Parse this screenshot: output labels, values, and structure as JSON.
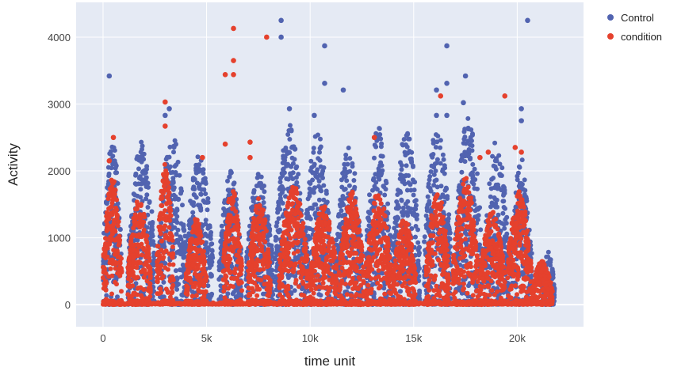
{
  "chart_data": {
    "type": "scatter",
    "title": "",
    "xlabel": "time unit",
    "ylabel": "Activity",
    "xlim": [
      -1300,
      23200
    ],
    "ylim": [
      -330,
      4520
    ],
    "xticks": [
      0,
      5000,
      10000,
      15000,
      20000
    ],
    "xtick_labels": [
      "0",
      "5k",
      "10k",
      "15k",
      "20k"
    ],
    "yticks": [
      0,
      1000,
      2000,
      3000,
      4000
    ],
    "ytick_labels": [
      "0",
      "1000",
      "2000",
      "3000",
      "4000"
    ],
    "grid": true,
    "legend_position": "top-right",
    "background": "#e5eaf4",
    "series": [
      {
        "name": "Control",
        "color": "#5163b0",
        "bursts": [
          {
            "x_start": 0,
            "x_end": 900,
            "max": 2450
          },
          {
            "x_start": 1200,
            "x_end": 2500,
            "max": 2450
          },
          {
            "x_start": 2700,
            "x_end": 4000,
            "max": 2600
          },
          {
            "x_start": 4000,
            "x_end": 5300,
            "max": 2300
          },
          {
            "x_start": 5600,
            "x_end": 6700,
            "max": 2000
          },
          {
            "x_start": 6900,
            "x_end": 8200,
            "max": 2000
          },
          {
            "x_start": 8300,
            "x_end": 9700,
            "max": 2700
          },
          {
            "x_start": 9700,
            "x_end": 11000,
            "max": 2600
          },
          {
            "x_start": 11200,
            "x_end": 12500,
            "max": 2350
          },
          {
            "x_start": 12700,
            "x_end": 13900,
            "max": 2650
          },
          {
            "x_start": 14000,
            "x_end": 15300,
            "max": 2600
          },
          {
            "x_start": 15500,
            "x_end": 16800,
            "max": 2700
          },
          {
            "x_start": 17000,
            "x_end": 18300,
            "max": 2850
          },
          {
            "x_start": 18400,
            "x_end": 19600,
            "max": 2500
          },
          {
            "x_start": 19700,
            "x_end": 20700,
            "max": 2200
          },
          {
            "x_start": 21200,
            "x_end": 21800,
            "max": 800
          }
        ],
        "outliers": [
          [
            300,
            3420
          ],
          [
            8600,
            4250
          ],
          [
            8600,
            4000
          ],
          [
            10700,
            3870
          ],
          [
            10700,
            3310
          ],
          [
            11600,
            3210
          ],
          [
            16100,
            3210
          ],
          [
            16600,
            3870
          ],
          [
            16600,
            3310
          ],
          [
            17500,
            3420
          ],
          [
            17400,
            3020
          ],
          [
            20500,
            4250
          ],
          [
            20200,
            2930
          ],
          [
            20200,
            2750
          ],
          [
            9000,
            2930
          ],
          [
            3200,
            2930
          ],
          [
            3000,
            2830
          ],
          [
            10200,
            2830
          ],
          [
            16100,
            2830
          ],
          [
            16600,
            2830
          ]
        ]
      },
      {
        "name": "condition",
        "color": "#e5412d",
        "bursts": [
          {
            "x_start": 0,
            "x_end": 900,
            "max": 1900
          },
          {
            "x_start": 1200,
            "x_end": 2300,
            "max": 1600
          },
          {
            "x_start": 2600,
            "x_end": 3400,
            "max": 2100
          },
          {
            "x_start": 4000,
            "x_end": 5000,
            "max": 1300
          },
          {
            "x_start": 5800,
            "x_end": 6700,
            "max": 1800
          },
          {
            "x_start": 7000,
            "x_end": 8100,
            "max": 1600
          },
          {
            "x_start": 8500,
            "x_end": 9900,
            "max": 1800
          },
          {
            "x_start": 10000,
            "x_end": 11300,
            "max": 1500
          },
          {
            "x_start": 11400,
            "x_end": 12600,
            "max": 1700
          },
          {
            "x_start": 12700,
            "x_end": 13900,
            "max": 1700
          },
          {
            "x_start": 14000,
            "x_end": 15100,
            "max": 1300
          },
          {
            "x_start": 15600,
            "x_end": 16700,
            "max": 1700
          },
          {
            "x_start": 16900,
            "x_end": 18100,
            "max": 1900
          },
          {
            "x_start": 18200,
            "x_end": 19400,
            "max": 1400
          },
          {
            "x_start": 19500,
            "x_end": 20700,
            "max": 1700
          },
          {
            "x_start": 20700,
            "x_end": 21700,
            "max": 650
          }
        ],
        "outliers": [
          [
            6300,
            4130
          ],
          [
            7900,
            4000
          ],
          [
            5900,
            3440
          ],
          [
            6300,
            3440
          ],
          [
            6300,
            3650
          ],
          [
            3000,
            3030
          ],
          [
            3000,
            2670
          ],
          [
            16300,
            3120
          ],
          [
            19400,
            3120
          ],
          [
            13100,
            2500
          ],
          [
            500,
            2500
          ],
          [
            7100,
            2430
          ],
          [
            5900,
            2400
          ],
          [
            4800,
            2200
          ],
          [
            19900,
            2350
          ],
          [
            20200,
            2280
          ],
          [
            18600,
            2280
          ],
          [
            18200,
            2200
          ],
          [
            7100,
            2200
          ],
          [
            300,
            2150
          ]
        ]
      }
    ]
  }
}
